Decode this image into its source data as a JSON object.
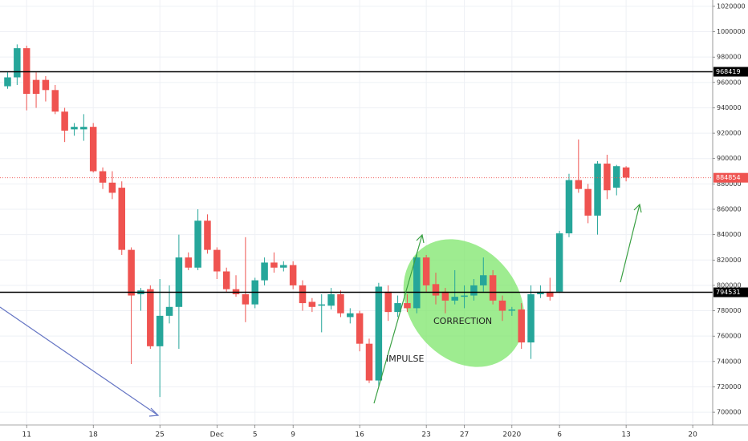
{
  "chart_data": {
    "type": "candlestick",
    "open": [
      957000,
      964000,
      987000,
      962000,
      962000,
      954000,
      937000,
      923000,
      923000,
      925000,
      890000,
      881000,
      877000,
      828000,
      793000,
      797000,
      752000,
      776000,
      783000,
      822000,
      814000,
      851000,
      828000,
      811000,
      797000,
      793000,
      785000,
      804000,
      818000,
      814000,
      816000,
      800000,
      787000,
      784000,
      784000,
      793000,
      775000,
      778000,
      754000,
      725000,
      795000,
      779000,
      786000,
      782000,
      822000,
      801000,
      795000,
      788000,
      791000,
      792000,
      800000,
      808000,
      788000,
      780000,
      781000,
      755000,
      793000,
      795000,
      795000,
      841000,
      883000,
      876000,
      855000,
      896000,
      877000,
      893000
    ],
    "high": [
      968000,
      990000,
      989000,
      968000,
      965000,
      958000,
      940000,
      928000,
      935000,
      928000,
      893000,
      890000,
      882000,
      830000,
      798000,
      800000,
      805000,
      800000,
      840000,
      826000,
      860000,
      856000,
      830000,
      814000,
      808000,
      838000,
      806000,
      822000,
      826000,
      819000,
      819000,
      804000,
      790000,
      793000,
      798000,
      796000,
      782000,
      780000,
      758000,
      802000,
      800000,
      792000,
      793000,
      826000,
      824000,
      810000,
      798000,
      812000,
      800000,
      805000,
      822000,
      812000,
      792000,
      783000,
      786000,
      800000,
      800000,
      806000,
      843000,
      888000,
      915000,
      880000,
      898000,
      903000,
      895000,
      894000
    ],
    "low": [
      955000,
      958000,
      938000,
      940000,
      945000,
      935000,
      913000,
      918000,
      914000,
      889000,
      876000,
      868000,
      824000,
      738000,
      780000,
      750000,
      712000,
      770000,
      750000,
      812000,
      812000,
      825000,
      805000,
      795000,
      791000,
      771000,
      782000,
      800000,
      810000,
      811000,
      797000,
      780000,
      779000,
      763000,
      781000,
      775000,
      770000,
      748000,
      723000,
      720000,
      772000,
      775000,
      779000,
      778000,
      795000,
      785000,
      778000,
      785000,
      782000,
      788000,
      795000,
      785000,
      772000,
      776000,
      750000,
      742000,
      790000,
      788000,
      794000,
      838000,
      873000,
      849000,
      840000,
      868000,
      871000,
      882000
    ],
    "close": [
      964000,
      987000,
      951000,
      951000,
      954000,
      937000,
      922000,
      925000,
      925000,
      890000,
      881000,
      873000,
      828000,
      792000,
      796000,
      752000,
      776000,
      783000,
      822000,
      814000,
      851000,
      828000,
      811000,
      797000,
      793000,
      785000,
      804000,
      818000,
      814000,
      816000,
      800000,
      786000,
      783000,
      785000,
      793000,
      778000,
      778000,
      754000,
      725000,
      799000,
      779000,
      786000,
      782000,
      822000,
      800000,
      792000,
      788000,
      791000,
      792000,
      800000,
      808000,
      788000,
      780000,
      781000,
      755000,
      793000,
      795000,
      791000,
      841000,
      883000,
      876000,
      855000,
      896000,
      875000,
      894000,
      885000
    ],
    "up_color": "#26a69a",
    "down_color": "#ef5350",
    "ylim": [
      695000,
      1025000
    ],
    "yticks": [
      700000,
      720000,
      740000,
      760000,
      780000,
      800000,
      820000,
      840000,
      860000,
      880000,
      900000,
      920000,
      940000,
      960000,
      980000,
      1000000,
      1020000
    ],
    "xlim": [
      -0.8,
      74.1
    ],
    "xticks": [
      {
        "value": 2,
        "label": "11"
      },
      {
        "value": 9,
        "label": "18"
      },
      {
        "value": 16,
        "label": "25"
      },
      {
        "value": 22,
        "label": "Dec"
      },
      {
        "value": 26,
        "label": "5"
      },
      {
        "value": 30,
        "label": "9"
      },
      {
        "value": 37,
        "label": "16"
      },
      {
        "value": 44,
        "label": "23"
      },
      {
        "value": 48,
        "label": "27"
      },
      {
        "value": 53,
        "label": "2020"
      },
      {
        "value": 58,
        "label": "6"
      },
      {
        "value": 65,
        "label": "13"
      },
      {
        "value": 72,
        "label": "20"
      }
    ],
    "grid": true,
    "levels": [
      968419,
      794531
    ],
    "last_price": 884854,
    "annotations": [
      "IMPULSE",
      "CORRECTION"
    ]
  }
}
